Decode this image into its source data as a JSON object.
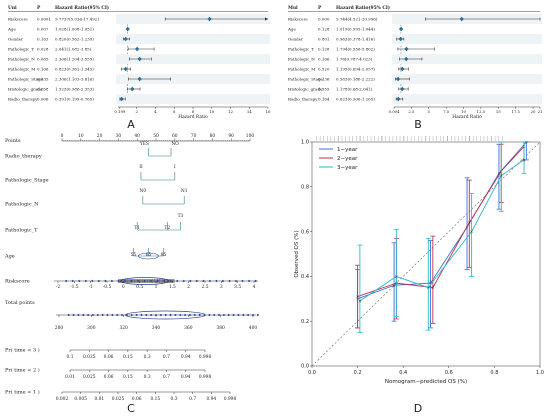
{
  "panel_labels": [
    "A",
    "B",
    "C",
    "D"
  ],
  "chart_data": [
    {
      "type": "forest",
      "panel": "A",
      "headers": {
        "var": "Uni",
        "p": "P",
        "hr": "Hazard Ratio(95% CI)"
      },
      "xlabel": "Hazard Ratio",
      "xlim": [
        0,
        16
      ],
      "ticks": [
        "0.199",
        "2",
        "4",
        "6",
        "8",
        "10",
        "12",
        "14",
        "16"
      ],
      "tick_values": [
        0.199,
        2,
        4,
        6,
        8,
        10,
        12,
        14,
        16
      ],
      "rows": [
        {
          "var": "Riskscore",
          "p": "0.0001",
          "hr_text": "9.7737(5.036-17.492)",
          "hr": 9.77,
          "lo": 5.04,
          "hi": 16.0,
          "arrow": true
        },
        {
          "var": "Age",
          "p": "0.007",
          "hr_text": "1.028(1.008-1.051)",
          "hr": 1.03,
          "lo": 1.01,
          "hi": 1.05
        },
        {
          "var": "Gender",
          "p": "0.163",
          "hr_text": "0.820(0.562-1.239)",
          "hr": 0.82,
          "lo": 0.56,
          "hi": 1.24
        },
        {
          "var": "Pathologic_T",
          "p": "0.028",
          "hr_text": "2.041(1.082-3.85)",
          "hr": 2.04,
          "lo": 1.08,
          "hi": 3.85
        },
        {
          "var": "Pathologic_N",
          "p": "0.065",
          "hr_text": "2.306(1.204-3.559)",
          "hr": 2.31,
          "lo": 1.2,
          "hi": 3.56
        },
        {
          "var": "Pathologic_M",
          "p": "0.106",
          "hr_text": "0.823(0.361-1.345)",
          "hr": 0.82,
          "lo": 0.36,
          "hi": 1.35
        },
        {
          "var": "Pathologic_Stage",
          "p": "0.035",
          "hr_text": "2.306(1.103-5.616)",
          "hr": 2.31,
          "lo": 1.1,
          "hi": 5.62
        },
        {
          "var": "Histologic_grade",
          "p": "0.058",
          "hr_text": "1.523(0.986-2.353)",
          "hr": 1.52,
          "lo": 0.99,
          "hi": 2.35
        },
        {
          "var": "Radio_therapy",
          "p": "0.006",
          "hr_text": "0.391(0.199-0.765)",
          "hr": 0.39,
          "lo": 0.2,
          "hi": 0.77
        }
      ]
    },
    {
      "type": "forest",
      "panel": "B",
      "headers": {
        "var": "Mul",
        "p": "P",
        "hr": "Hazard Ratio(95% CI)"
      },
      "xlabel": "Hazard Ratio",
      "xlim": [
        0,
        21
      ],
      "ticks": [
        "0.004",
        "2.5",
        "5",
        "7.5",
        "10",
        "12.5",
        "15",
        "17.5",
        "20",
        "21"
      ],
      "tick_values": [
        0.004,
        2.5,
        5,
        7.5,
        10,
        12.5,
        15,
        17.5,
        20,
        21
      ],
      "rows": [
        {
          "var": "Riskscore",
          "p": "0.000",
          "hr_text": "9.744(4.521-20.996)",
          "hr": 9.74,
          "lo": 4.52,
          "hi": 21.0
        },
        {
          "var": "Age",
          "p": "0.128",
          "hr_text": "1.019(0.995-1.044)",
          "hr": 1.02,
          "lo": 1.0,
          "hi": 1.04
        },
        {
          "var": "Gender",
          "p": "0.801",
          "hr_text": "0.963(0.378-1.416)",
          "hr": 0.96,
          "lo": 0.38,
          "hi": 1.42
        },
        {
          "var": "Pathologic_T",
          "p": "0.128",
          "hr_text": "1.794(0.556-5.802)",
          "hr": 1.79,
          "lo": 0.56,
          "hi": 5.8
        },
        {
          "var": "Pathologic_N",
          "p": "0.166",
          "hr_text": "1.76(0.787-4.023)",
          "hr": 1.76,
          "lo": 0.79,
          "hi": 4.02
        },
        {
          "var": "Pathologic_M",
          "p": "0.520",
          "hr_text": "1.195(0.694-2.057)",
          "hr": 1.2,
          "lo": 0.69,
          "hi": 2.06
        },
        {
          "var": "Pathologic_Stage",
          "p": "0.136",
          "hr_text": "0.583(0.186-2.222)",
          "hr": 0.58,
          "lo": 0.19,
          "hi": 2.22
        },
        {
          "var": "Histologic_grade",
          "p": "0.559",
          "hr_text": "1.178(0.68-2.041)",
          "hr": 1.18,
          "lo": 0.68,
          "hi": 2.04
        },
        {
          "var": "Radio_therapy",
          "p": "0.164",
          "hr_text": "0.623(0.306-1.265)",
          "hr": 0.62,
          "lo": 0.31,
          "hi": 1.27
        }
      ]
    },
    {
      "type": "nomogram",
      "panel": "C",
      "points_axis": {
        "label": "Points",
        "ticks": [
          "0",
          "10",
          "20",
          "30",
          "40",
          "50",
          "60",
          "70",
          "80",
          "90",
          "100"
        ]
      },
      "variables": [
        {
          "label": "Radio_therapy",
          "levels": [
            "YES",
            "NO"
          ]
        },
        {
          "label": "Pathologic_Stage",
          "levels": [
            "II",
            "I"
          ]
        },
        {
          "label": "Pathologic_N",
          "levels": [
            "N0",
            "N1"
          ]
        },
        {
          "label": "Pathologic_T",
          "levels": [
            "T1",
            "T2",
            "T3"
          ]
        },
        {
          "label": "Age",
          "levels": [
            "55",
            "65",
            "85"
          ]
        },
        {
          "label": "Riskscore",
          "ticks": [
            "-2",
            "-1.5",
            "-1",
            "-0.5",
            "0",
            "0.5",
            "1",
            "1.5",
            "2",
            "2.5",
            "3",
            "3.5",
            "4"
          ]
        }
      ],
      "total_points": {
        "label": "Total points",
        "ticks": [
          "280",
          "300",
          "320",
          "340",
          "360",
          "380",
          "400"
        ]
      },
      "survival_axes": [
        {
          "label": "Pr( time < 3 )",
          "ticks": [
            "0.1",
            "0.025",
            "0.06",
            "0.15",
            "0.3",
            "0.7",
            "0.94",
            "0.998"
          ]
        },
        {
          "label": "Pr( time < 2 )",
          "ticks": [
            "0.01",
            "0.025",
            "0.06",
            "0.15",
            "0.3",
            "0.7",
            "0.94",
            "0.998"
          ]
        },
        {
          "label": "Pr( time < 1 )",
          "ticks": [
            "0.002",
            "0.005",
            "0.01",
            "0.025",
            "0.06",
            "0.15",
            "0.3",
            "0.7",
            "0.94",
            "0.998"
          ]
        }
      ]
    },
    {
      "type": "line",
      "panel": "D",
      "xlabel": "Nomogram−predicted OS (%)",
      "ylabel": "Observed OS (%)",
      "xlim": [
        0,
        1
      ],
      "ylim": [
        0,
        1
      ],
      "xticks": [
        "0.0",
        "0.2",
        "0.4",
        "0.6",
        "0.8",
        "1.0"
      ],
      "yticks": [
        "0.0",
        "0.2",
        "0.4",
        "0.6",
        "0.8",
        "1.0"
      ],
      "legend_position": "top-left",
      "series": [
        {
          "name": "1−year",
          "color": "#3b6fd8",
          "x": [
            0.2,
            0.36,
            0.52,
            0.68,
            0.82,
            0.94
          ],
          "y": [
            0.3,
            0.36,
            0.37,
            0.62,
            0.86,
            1.0
          ],
          "lo": [
            0.17,
            0.2,
            0.17,
            0.43,
            0.7,
            0.92
          ],
          "hi": [
            0.43,
            0.55,
            0.56,
            0.84,
            0.99,
            1.0
          ]
        },
        {
          "name": "2−year",
          "color": "#c1334a",
          "x": [
            0.2,
            0.37,
            0.53,
            0.69,
            0.83,
            0.93
          ],
          "y": [
            0.31,
            0.37,
            0.35,
            0.64,
            0.87,
            0.98
          ],
          "lo": [
            0.17,
            0.21,
            0.19,
            0.44,
            0.73,
            0.92
          ],
          "hi": [
            0.45,
            0.57,
            0.58,
            0.83,
            0.99,
            1.0
          ]
        },
        {
          "name": "3−year",
          "color": "#2ab7d4",
          "x": [
            0.21,
            0.37,
            0.51,
            0.7,
            0.83,
            0.93
          ],
          "y": [
            0.29,
            0.4,
            0.35,
            0.6,
            0.85,
            0.92
          ],
          "lo": [
            0.15,
            0.22,
            0.16,
            0.4,
            0.69,
            0.86
          ],
          "hi": [
            0.54,
            0.61,
            0.57,
            0.77,
            1.0,
            1.0
          ]
        }
      ]
    }
  ]
}
